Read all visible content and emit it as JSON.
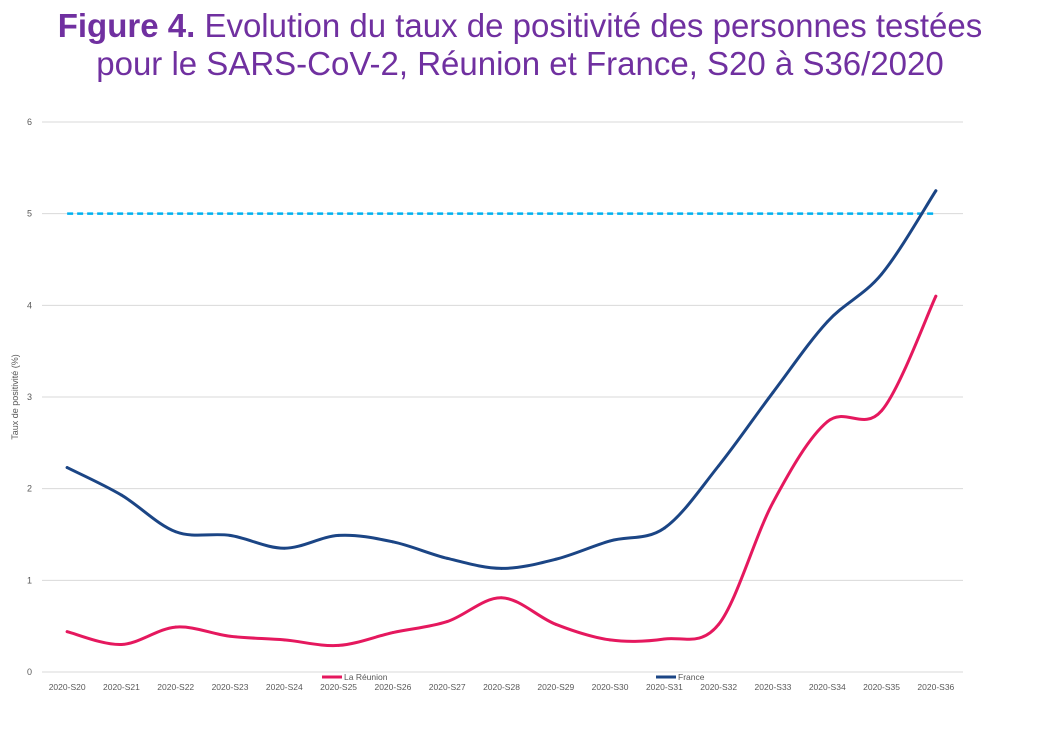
{
  "colors": {
    "title": "#7030a0",
    "axis_text": "#595959",
    "gridline": "#d9d9d9"
  },
  "chart_data": {
    "type": "line",
    "title": {
      "figure_label": "Figure 4.",
      "line1": "Evolution du taux de positivité des personnes testées",
      "line2": "pour le SARS-CoV-2, Réunion et France, S20 à S36/2020"
    },
    "ylabel": "Taux de positivité (%)",
    "ylim": [
      0,
      6
    ],
    "yticks": [
      0,
      1,
      2,
      3,
      4,
      5,
      6
    ],
    "grid": true,
    "smooth": true,
    "legend_position": "bottom",
    "categories": [
      "2020-S20",
      "2020-S21",
      "2020-S22",
      "2020-S23",
      "2020-S24",
      "2020-S25",
      "2020-S26",
      "2020-S27",
      "2020-S28",
      "2020-S29",
      "2020-S30",
      "2020-S31",
      "2020-S32",
      "2020-S33",
      "2020-S34",
      "2020-S35",
      "2020-S36"
    ],
    "series": [
      {
        "name": "La Réunion",
        "color": "#e5185e",
        "values": [
          0.44,
          0.3,
          0.49,
          0.39,
          0.35,
          0.29,
          0.43,
          0.55,
          0.81,
          0.52,
          0.35,
          0.36,
          0.52,
          1.85,
          2.73,
          2.85,
          4.1
        ]
      },
      {
        "name": "France",
        "color": "#1b4585",
        "values": [
          2.23,
          1.93,
          1.53,
          1.49,
          1.35,
          1.49,
          1.42,
          1.24,
          1.13,
          1.23,
          1.43,
          1.57,
          2.25,
          3.05,
          3.82,
          4.34,
          5.25
        ]
      }
    ],
    "reference_line": {
      "value": 5,
      "style": "dashed",
      "color": "#00b0f0"
    }
  }
}
